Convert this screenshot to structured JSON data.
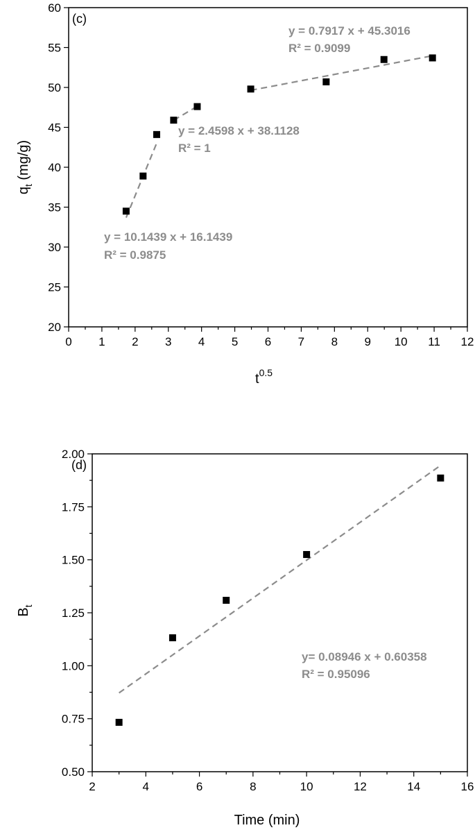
{
  "chart_data": [
    {
      "type": "scatter",
      "panel_label": "(c)",
      "xlabel": "t",
      "xlabel_sup": "0.5",
      "ylabel": "q",
      "ylabel_sub": "t",
      "ylabel_unit": " (mg/g)",
      "xlim": [
        0,
        12
      ],
      "ylim": [
        20,
        60
      ],
      "xticks": [
        "0",
        "1",
        "2",
        "3",
        "4",
        "5",
        "6",
        "7",
        "8",
        "9",
        "10",
        "11",
        "12"
      ],
      "yticks": [
        "20",
        "25",
        "30",
        "35",
        "40",
        "45",
        "50",
        "55",
        "60"
      ],
      "points": [
        {
          "x": 1.73,
          "y": 34.5
        },
        {
          "x": 2.24,
          "y": 38.9
        },
        {
          "x": 2.65,
          "y": 44.1
        },
        {
          "x": 3.16,
          "y": 45.9
        },
        {
          "x": 3.87,
          "y": 47.6
        },
        {
          "x": 5.48,
          "y": 49.8
        },
        {
          "x": 7.75,
          "y": 50.7
        },
        {
          "x": 9.49,
          "y": 53.5
        },
        {
          "x": 10.95,
          "y": 53.7
        }
      ],
      "fits": [
        {
          "slope": 10.1439,
          "intercept": 16.1439,
          "x_range": [
            1.73,
            2.65
          ],
          "equation": "y = 10.1439 x + 16.1439",
          "r2": "R² = 0.9875"
        },
        {
          "slope": 2.4598,
          "intercept": 38.1128,
          "x_range": [
            3.16,
            3.87
          ],
          "equation": "y = 2.4598 x + 38.1128",
          "r2": "R² = 1"
        },
        {
          "slope": 0.7917,
          "intercept": 45.3016,
          "x_range": [
            5.48,
            10.95
          ],
          "equation": "y = 0.7917 x + 45.3016",
          "r2": "R² = 0.9099"
        }
      ],
      "grid": false
    },
    {
      "type": "scatter",
      "panel_label": "(d)",
      "xlabel": "Time (min)",
      "ylabel": "B",
      "ylabel_sub": "t",
      "xlim": [
        2,
        16
      ],
      "ylim": [
        0.5,
        2.0
      ],
      "xticks": [
        "2",
        "4",
        "6",
        "8",
        "10",
        "12",
        "14",
        "16"
      ],
      "yticks": [
        "0.50",
        "0.75",
        "1.00",
        "1.25",
        "1.50",
        "1.75",
        "2.00"
      ],
      "points": [
        {
          "x": 3,
          "y": 0.733
        },
        {
          "x": 5,
          "y": 1.132
        },
        {
          "x": 7,
          "y": 1.309
        },
        {
          "x": 10,
          "y": 1.525
        },
        {
          "x": 15,
          "y": 1.886
        }
      ],
      "fits": [
        {
          "slope": 0.08946,
          "intercept": 0.60358,
          "x_range": [
            3,
            15
          ],
          "equation": "y= 0.08946 x + 0.60358",
          "r2": "R² = 0.95096"
        }
      ],
      "grid": false
    }
  ]
}
